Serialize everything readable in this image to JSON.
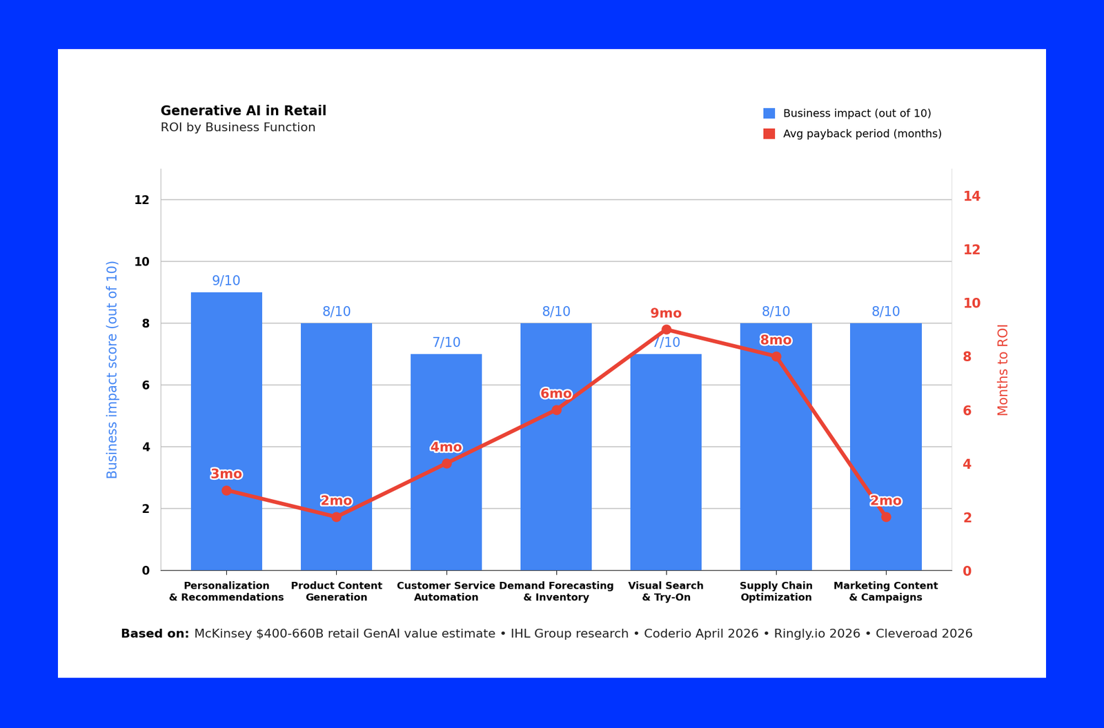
{
  "chart_data": {
    "type": "bar",
    "title": "Generative AI in Retail",
    "subtitle": "ROI by Business Function",
    "source_label": "Based on:",
    "source": "McKinsey $400-660B retail GenAI value estimate • IHL Group research • Coderio April 2026 • Ringly.io 2026 • Cleveroad 2026",
    "categories": [
      "Personalization\n& Recommendations",
      "Product Content\nGeneration",
      "Customer Service\nAutomation",
      "Demand Forecasting\n& Inventory",
      "Visual Search\n& Try-On",
      "Supply Chain\nOptimization",
      "Marketing Content\n& Campaigns"
    ],
    "y_label": "Business impact score (out of 10)",
    "y2_label": "Months to ROI",
    "ylim": [
      0,
      13
    ],
    "yticks": [
      0,
      2,
      4,
      6,
      8,
      10,
      12
    ],
    "y2lim": [
      0,
      15
    ],
    "y2ticks": [
      0,
      2,
      4,
      6,
      8,
      10,
      12,
      14
    ],
    "grid": true,
    "legend": "upper right",
    "data_labels": true,
    "series": [
      {
        "name": "Business impact (out of 10)",
        "type": "bar",
        "color": "#4285F4",
        "values": [
          9,
          8,
          7,
          8,
          7,
          8,
          8
        ],
        "value_labels": [
          "9/10",
          "8/10",
          "7/10",
          "8/10",
          "7/10",
          "8/10",
          "8/10"
        ]
      },
      {
        "name": "Avg payback period (months)",
        "type": "line",
        "color": "#EA4335",
        "marker": "o",
        "axis": "y2",
        "values": [
          3,
          2,
          4,
          6,
          9,
          8,
          2
        ],
        "value_labels": [
          "3mo",
          "2mo",
          "4mo",
          "6mo",
          "9mo",
          "8mo",
          "2mo"
        ]
      }
    ]
  }
}
